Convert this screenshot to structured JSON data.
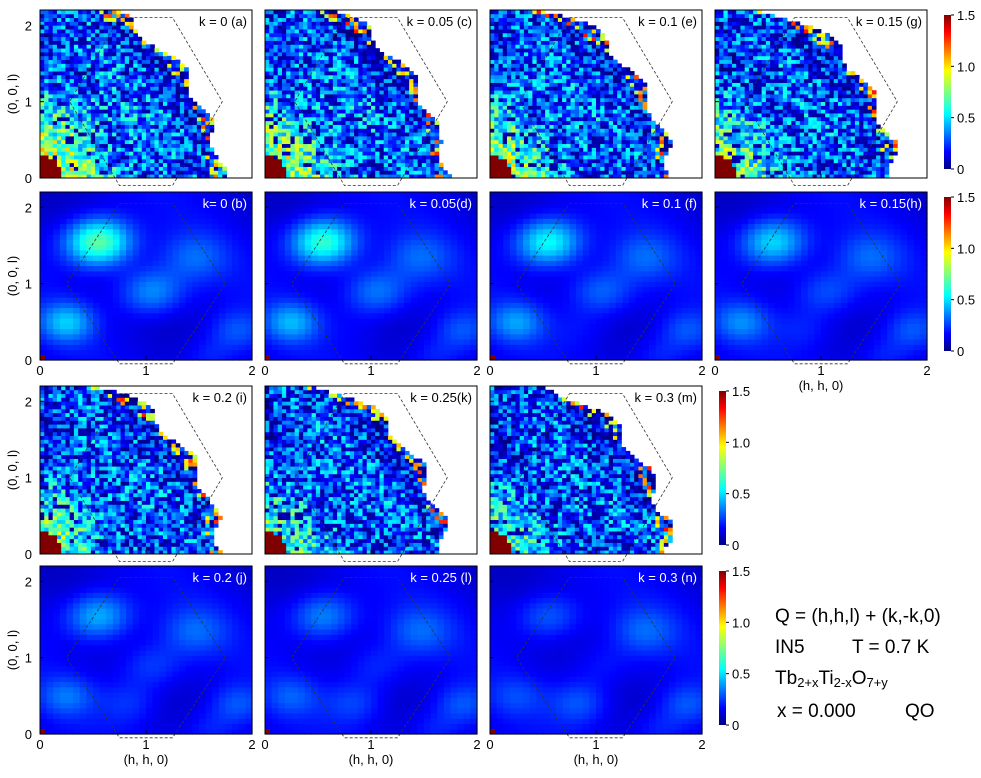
{
  "figure": {
    "info": {
      "q_line": "Q = (h,h,l) + (k,-k,0)",
      "instrument": "IN5",
      "temperature": "T = 0.7 K",
      "formula": {
        "p1": "Tb",
        "s1": "2+x",
        "p2": "Ti",
        "s2": "2-x",
        "p3": "O",
        "s3": "7+y"
      },
      "x_value": "x = 0.000",
      "label_qo": "QO"
    },
    "colors": {
      "frame": "#000000",
      "zone": "#333333",
      "background": "#ffffff"
    }
  },
  "chart_data": {
    "type": "heatmap",
    "xlabel": "(h, h, 0)",
    "ylabel": "(0, 0, l)",
    "xlim": [
      0,
      2
    ],
    "ylim": [
      0,
      2.2
    ],
    "xticks": [
      "0",
      "1",
      "2"
    ],
    "yticks": [
      "0",
      "1",
      "2"
    ],
    "colorbar": {
      "min": 0,
      "max": 1.5,
      "ticks": [
        "0",
        "0.5",
        "1.0",
        "1.5"
      ],
      "colormap": "jet"
    },
    "panels": [
      {
        "id": "a",
        "label": "k = 0 (a)",
        "k": 0,
        "kind": "data",
        "row": 0,
        "col": 0
      },
      {
        "id": "c",
        "label": "k = 0.05 (c)",
        "k": 0.05,
        "kind": "data",
        "row": 0,
        "col": 1
      },
      {
        "id": "e",
        "label": "k = 0.1 (e)",
        "k": 0.1,
        "kind": "data",
        "row": 0,
        "col": 2
      },
      {
        "id": "g",
        "label": "k = 0.15 (g)",
        "k": 0.15,
        "kind": "data",
        "row": 0,
        "col": 3
      },
      {
        "id": "b",
        "label": "k= 0 (b)",
        "k": 0,
        "kind": "model",
        "row": 1,
        "col": 0
      },
      {
        "id": "d",
        "label": "k = 0.05(d)",
        "k": 0.05,
        "kind": "model",
        "row": 1,
        "col": 1
      },
      {
        "id": "f",
        "label": "k = 0.1 (f)",
        "k": 0.1,
        "kind": "model",
        "row": 1,
        "col": 2
      },
      {
        "id": "h",
        "label": "k = 0.15(h)",
        "k": 0.15,
        "kind": "model",
        "row": 1,
        "col": 3
      },
      {
        "id": "i",
        "label": "k = 0.2 (i)",
        "k": 0.2,
        "kind": "data",
        "row": 2,
        "col": 0
      },
      {
        "id": "k",
        "label": "k = 0.25(k)",
        "k": 0.25,
        "kind": "data",
        "row": 2,
        "col": 1
      },
      {
        "id": "m",
        "label": "k = 0.3 (m)",
        "k": 0.3,
        "kind": "data",
        "row": 2,
        "col": 2
      },
      {
        "id": "j",
        "label": "k = 0.2 (j)",
        "k": 0.2,
        "kind": "model",
        "row": 3,
        "col": 0
      },
      {
        "id": "l",
        "label": "k = 0.25 (l)",
        "k": 0.25,
        "kind": "model",
        "row": 3,
        "col": 1
      },
      {
        "id": "n",
        "label": "k = 0.3 (n)",
        "k": 0.3,
        "kind": "model",
        "row": 3,
        "col": 2
      }
    ],
    "colorbars": [
      {
        "id": "cb-top-data",
        "row": 0,
        "col": 4
      },
      {
        "id": "cb-top-model",
        "row": 1,
        "col": 4
      },
      {
        "id": "cb-bottom-data",
        "row": 2,
        "col": 3
      },
      {
        "id": "cb-bottom-model",
        "row": 3,
        "col": 3
      }
    ]
  }
}
